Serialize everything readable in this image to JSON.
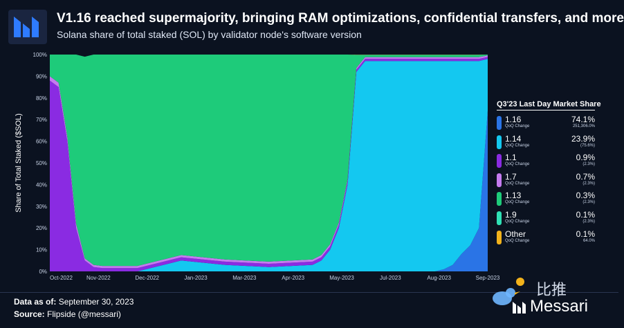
{
  "header": {
    "title": "V1.16 reached supermajority, bringing RAM optimizations, confidential transfers, and more",
    "subtitle": "Solana share of total staked (SOL) by validator node's software version"
  },
  "footer": {
    "data_as_of_label": "Data as of:",
    "data_as_of_value": "September 30, 2023",
    "source_label": "Source:",
    "source_value": "Flipside (@messari)",
    "brand": "Messari",
    "watermark_text": "比推"
  },
  "colors": {
    "background": "#0b1220",
    "v116": "#2a74e6",
    "v114": "#14c8f0",
    "v11": "#8a2be2",
    "v17": "#c57bf0",
    "v113": "#1ecb7a",
    "v19": "#2fe0b5",
    "other": "#f2b21b"
  },
  "legend": {
    "title": "Q3'23 Last Day Market Share",
    "items": [
      {
        "name": "1.16",
        "sub": "QoQ Change",
        "value": "74.1%",
        "change": "251,306.0%",
        "color": "#2a74e6"
      },
      {
        "name": "1.14",
        "sub": "QoQ Change",
        "value": "23.9%",
        "change": "(75.6%)",
        "color": "#14c8f0"
      },
      {
        "name": "1.1",
        "sub": "QoQ Change",
        "value": "0.9%",
        "change": "(2.3%)",
        "color": "#8a2be2"
      },
      {
        "name": "1.7",
        "sub": "QoQ Change",
        "value": "0.7%",
        "change": "(2.3%)",
        "color": "#c57bf0"
      },
      {
        "name": "1.13",
        "sub": "QoQ Change",
        "value": "0.3%",
        "change": "(2.3%)",
        "color": "#1ecb7a"
      },
      {
        "name": "1.9",
        "sub": "QoQ Change",
        "value": "0.1%",
        "change": "(2.3%)",
        "color": "#2fe0b5"
      },
      {
        "name": "Other",
        "sub": "QoQ Change",
        "value": "0.1%",
        "change": "64.0%",
        "color": "#f2b21b"
      }
    ]
  },
  "chart_data": {
    "type": "area",
    "stacked": true,
    "title": "V1.16 reached supermajority, bringing RAM optimizations, confidential transfers, and more",
    "subtitle": "Solana share of total staked (SOL) by validator node's software version",
    "xlabel": "",
    "ylabel": "Share of Total Staked ($SOL)",
    "ylim": [
      0,
      100
    ],
    "y_ticks": [
      "0%",
      "10%",
      "20%",
      "30%",
      "40%",
      "50%",
      "60%",
      "70%",
      "80%",
      "90%",
      "100%"
    ],
    "x_tick_labels": [
      "Oct-2022",
      "Nov-2022",
      "Dec-2022",
      "Jan-2023",
      "Mar-2023",
      "Apr-2023",
      "May-2023",
      "Jul-2023",
      "Aug-2023",
      "Sep-2023"
    ],
    "x": [
      0,
      2,
      4,
      6,
      8,
      10,
      12,
      20,
      30,
      40,
      50,
      60,
      62,
      64,
      66,
      68,
      70,
      72,
      74,
      76,
      78,
      80,
      82,
      84,
      86,
      88,
      90,
      92,
      94,
      96,
      98,
      100
    ],
    "series": [
      {
        "name": "1.16",
        "values": [
          0,
          0,
          0,
          0,
          0,
          0,
          0,
          0,
          0,
          0,
          0,
          0,
          0,
          0,
          0,
          0,
          0,
          0,
          0,
          0,
          0,
          0,
          0,
          0,
          0,
          0,
          1,
          3,
          8,
          12,
          20,
          74.1
        ]
      },
      {
        "name": "1.14",
        "values": [
          0,
          0,
          0,
          0,
          0,
          0,
          0,
          0,
          5,
          3,
          2,
          3,
          5,
          10,
          20,
          40,
          92,
          97,
          97,
          97,
          97,
          97,
          97,
          97,
          97,
          97,
          96,
          94,
          89,
          85,
          77,
          23.9
        ]
      },
      {
        "name": "1.1",
        "values": [
          88,
          85,
          60,
          20,
          5,
          2,
          1.5,
          1.5,
          1.5,
          1.5,
          1.5,
          1.5,
          1.5,
          1.5,
          1.5,
          1.5,
          1,
          1,
          1,
          1,
          1,
          1,
          1,
          1,
          1,
          1,
          1,
          1,
          1,
          1,
          1,
          0.9
        ]
      },
      {
        "name": "1.7",
        "values": [
          2,
          2,
          2,
          2,
          1,
          1,
          1,
          1,
          1,
          1,
          1,
          1,
          1,
          1,
          1,
          1,
          0.8,
          0.8,
          0.8,
          0.8,
          0.8,
          0.8,
          0.8,
          0.8,
          0.8,
          0.8,
          0.8,
          0.8,
          0.8,
          0.8,
          0.8,
          0.7
        ]
      },
      {
        "name": "1.13",
        "values": [
          10,
          13,
          38,
          78,
          93,
          97,
          97.5,
          97.5,
          92.5,
          94.5,
          95.5,
          94.5,
          92.5,
          87.5,
          77.5,
          57.5,
          6,
          1,
          1,
          1,
          1,
          1,
          1,
          1,
          1,
          1,
          1,
          1,
          1,
          1,
          1,
          0.3
        ]
      },
      {
        "name": "1.9",
        "values": [
          0,
          0,
          0,
          0,
          0,
          0,
          0,
          0,
          0,
          0,
          0,
          0,
          0,
          0,
          0,
          0,
          0.1,
          0.1,
          0.1,
          0.1,
          0.1,
          0.1,
          0.1,
          0.1,
          0.1,
          0.1,
          0.1,
          0.1,
          0.1,
          0.1,
          0.1,
          0.1
        ]
      },
      {
        "name": "Other",
        "values": [
          0,
          0,
          0,
          0,
          0,
          0,
          0,
          0,
          0,
          0,
          0,
          0,
          0,
          0,
          0,
          0,
          0.1,
          0.1,
          0.1,
          0.1,
          0.1,
          0.1,
          0.1,
          0.1,
          0.1,
          0.1,
          0.1,
          0.1,
          0.1,
          0.1,
          0.1,
          0.1
        ]
      }
    ],
    "legend_placement": "right",
    "grid": false
  }
}
